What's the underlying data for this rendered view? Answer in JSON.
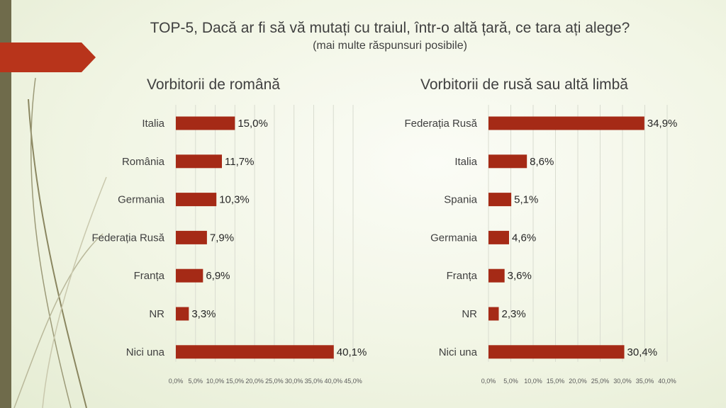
{
  "slide": {
    "title": "TOP-5, Dacă ar fi să vă mutați cu traiul, într-o altă țară, ce tara ați alege?",
    "subtitle": "(mai multe răspunsuri posibile)"
  },
  "colors": {
    "bar": "#a52a16",
    "arrow": "#b8341b",
    "side_bar": "#6f6b4b"
  },
  "chart_data": [
    {
      "type": "bar",
      "orientation": "horizontal",
      "title": "Vorbitorii de română",
      "categories": [
        "Italia",
        "România",
        "Germania",
        "Federația Rusă",
        "Franța",
        "NR",
        "Nici una"
      ],
      "values": [
        15.0,
        11.7,
        10.3,
        7.9,
        6.9,
        3.3,
        40.1
      ],
      "value_labels": [
        "15,0%",
        "11,7%",
        "10,3%",
        "7,9%",
        "6,9%",
        "3,3%",
        "40,1%"
      ],
      "ticks": [
        0,
        5,
        10,
        15,
        20,
        25,
        30,
        35,
        40,
        45
      ],
      "tick_labels": [
        "0,0%",
        "5,0%",
        "10,0%",
        "15,0%",
        "20,0%",
        "25,0%",
        "30,0%",
        "35,0%",
        "40,0%",
        "45,0%"
      ],
      "xlim": [
        0,
        45
      ],
      "grid": true
    },
    {
      "type": "bar",
      "orientation": "horizontal",
      "title": "Vorbitorii de rusă sau altă limbă",
      "categories": [
        "Federația Rusă",
        "Italia",
        "Spania",
        "Germania",
        "Franța",
        "NR",
        "Nici una"
      ],
      "values": [
        34.9,
        8.6,
        5.1,
        4.6,
        3.6,
        2.3,
        30.4
      ],
      "value_labels": [
        "34,9%",
        "8,6%",
        "5,1%",
        "4,6%",
        "3,6%",
        "2,3%",
        "30,4%"
      ],
      "ticks": [
        0,
        5,
        10,
        15,
        20,
        25,
        30,
        35,
        40
      ],
      "tick_labels": [
        "0,0%",
        "5,0%",
        "10,0%",
        "15,0%",
        "20,0%",
        "25,0%",
        "30,0%",
        "35,0%",
        "40,0%"
      ],
      "xlim": [
        0,
        40
      ],
      "grid": true
    }
  ]
}
